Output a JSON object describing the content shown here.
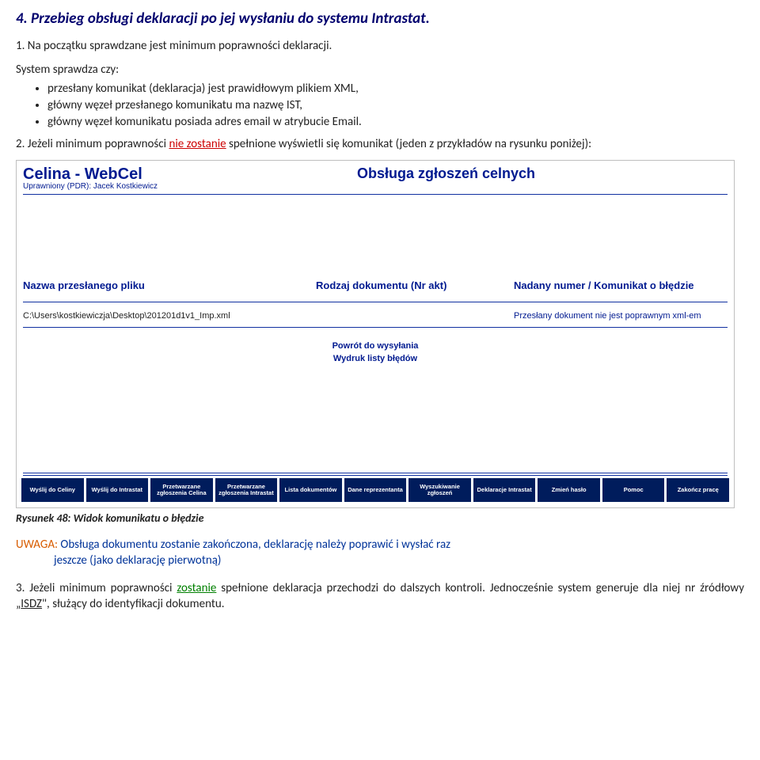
{
  "doc": {
    "section_title": "4. Przebieg obsługi deklaracji po jej wysłaniu do systemu Intrastat.",
    "p1": "1. Na początku sprawdzane jest minimum poprawności deklaracji.",
    "p2": "System sprawdza czy:",
    "bullets": [
      "przesłany komunikat (deklaracja) jest prawidłowym plikiem XML,",
      "główny węzeł przesłanego komunikatu ma nazwę IST,",
      "główny węzeł komunikatu posiada adres email w atrybucie Email."
    ],
    "p3_a": "2. Jeżeli minimum poprawności ",
    "p3_nz": "nie zostanie",
    "p3_b": " spełnione wyświetli się komunikat (jeden z przykładów na rysunku poniżej):",
    "caption": "Rysunek 48: Widok komunikatu o błędzie",
    "uwaga_label": "UWAGA:",
    "uwaga_a": " Obsługa dokumentu zostanie zakończona, deklarację należy poprawić i wysłać raz",
    "uwaga_b": "jeszcze (jako deklarację pierwotną)",
    "p4_a": "3. Jeżeli minimum poprawności ",
    "p4_z": "zostanie",
    "p4_b": " spełnione deklaracja przechodzi do dalszych kontroli. Jednocześnie system generuje dla niej nr źródłowy „",
    "p4_isdz": "ISDZ",
    "p4_c": "\", służący do identyfikacji dokumentu."
  },
  "app": {
    "title": "Celina - WebCel",
    "subtitle": "Uprawniony (PDR): Jacek Kostkiewicz",
    "heading": "Obsługa zgłoszeń celnych",
    "col1": "Nazwa przesłanego pliku",
    "col2": "Rodzaj dokumentu (Nr akt)",
    "col3": "Nadany numer / Komunikat o błędzie",
    "row_file": "C:\\Users\\kostkiewiczja\\Desktop\\201201d1v1_Imp.xml",
    "row_err": "Przesłany dokument nie jest poprawnym xml-em",
    "link1": "Powrót do wysyłania",
    "link2": "Wydruk listy błędów",
    "nav": [
      "Wyślij do Celiny",
      "Wyślij do Intrastat",
      "Przetwarzane zgłoszenia Celina",
      "Przetwarzane zgłoszenia Intrastat",
      "Lista dokumentów",
      "Dane reprezentanta",
      "Wyszukiwanie zgłoszeń",
      "Deklaracje Intrastat",
      "Zmień hasło",
      "Pomoc",
      "Zakończ pracę"
    ]
  }
}
